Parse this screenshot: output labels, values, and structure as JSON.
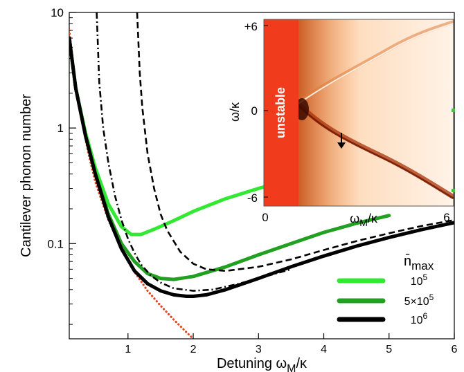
{
  "chart_data": {
    "type": "line",
    "xlabel": "Detuning ω_M/κ",
    "ylabel": "Cantilever phonon number",
    "xlim": [
      0.1,
      6
    ],
    "ylim": [
      0.015,
      10
    ],
    "yscale": "log",
    "xticks": [
      1,
      2,
      3,
      4,
      5,
      6
    ],
    "xtick_labels": [
      "1",
      "2",
      "3",
      "4",
      "5",
      "6"
    ],
    "yticks": [
      0.1,
      1,
      10
    ],
    "ytick_labels": [
      "0.1",
      "1",
      "10"
    ],
    "grid": false,
    "legend": {
      "title": "n̄_max",
      "placement": "bottom-right",
      "entries": [
        {
          "label": "10^5",
          "color": "#33e833"
        },
        {
          "label": "5×10^5",
          "color": "#22a022"
        },
        {
          "label": "10^6",
          "color": "#000000"
        }
      ]
    },
    "series": [
      {
        "name": "10^5",
        "style": "solid",
        "color": "#33e833",
        "x": [
          0.1,
          0.2,
          0.35,
          0.5,
          0.7,
          0.9,
          1.05,
          1.2,
          1.4,
          1.7,
          2.0,
          2.5,
          3.0,
          3.5,
          4.0,
          4.5
        ],
        "y": [
          6,
          2.2,
          0.9,
          0.45,
          0.22,
          0.14,
          0.12,
          0.12,
          0.133,
          0.158,
          0.19,
          0.245,
          0.3,
          0.36,
          0.42,
          0.48
        ]
      },
      {
        "name": "5×10^5",
        "style": "solid",
        "color": "#22a022",
        "x": [
          0.1,
          0.2,
          0.35,
          0.5,
          0.7,
          0.9,
          1.1,
          1.3,
          1.5,
          1.7,
          2.0,
          2.5,
          3.0,
          3.5,
          4.0,
          4.5,
          5.0
        ],
        "y": [
          6,
          2.2,
          0.85,
          0.4,
          0.18,
          0.1,
          0.07,
          0.055,
          0.05,
          0.049,
          0.052,
          0.063,
          0.08,
          0.1,
          0.125,
          0.15,
          0.175
        ]
      },
      {
        "name": "10^6",
        "style": "solid",
        "color": "#000000",
        "x": [
          0.1,
          0.2,
          0.35,
          0.5,
          0.7,
          0.9,
          1.1,
          1.3,
          1.5,
          1.7,
          1.9,
          2.0,
          2.2,
          2.5,
          3.0,
          3.5,
          4.0,
          4.5,
          5.0,
          5.5,
          6.0
        ],
        "y": [
          6,
          2.2,
          0.85,
          0.4,
          0.17,
          0.09,
          0.058,
          0.045,
          0.039,
          0.036,
          0.035,
          0.035,
          0.036,
          0.04,
          0.05,
          0.063,
          0.078,
          0.095,
          0.113,
          0.132,
          0.152
        ]
      },
      {
        "name": "",
        "style": "dashdot",
        "color": "#000000",
        "x": [
          0.52,
          0.56,
          0.62,
          0.7,
          0.8,
          0.9,
          1.0,
          1.1,
          1.2,
          1.35,
          1.5,
          1.7,
          2.0,
          2.3,
          2.7,
          3.0,
          3.5
        ],
        "y": [
          10,
          2.5,
          1.0,
          0.5,
          0.26,
          0.16,
          0.11,
          0.083,
          0.066,
          0.053,
          0.046,
          0.041,
          0.039,
          0.04,
          0.045,
          0.05,
          0.06
        ]
      },
      {
        "name": "",
        "style": "dashed",
        "color": "#000000",
        "x": [
          1.14,
          1.18,
          1.22,
          1.3,
          1.4,
          1.5,
          1.6,
          1.8,
          2.0,
          2.2,
          2.5,
          3.0,
          3.5,
          4.0,
          4.5,
          5.0,
          5.5,
          6.0
        ],
        "y": [
          10,
          3.0,
          1.5,
          0.6,
          0.3,
          0.18,
          0.13,
          0.085,
          0.067,
          0.06,
          0.058,
          0.063,
          0.073,
          0.088,
          0.105,
          0.123,
          0.142,
          0.16
        ]
      },
      {
        "name": "",
        "style": "dotted",
        "color": "#e8401c",
        "x": [
          0.1,
          0.2,
          0.3,
          0.4,
          0.5,
          0.7,
          0.9,
          1.1,
          1.3,
          1.5,
          1.7,
          1.9,
          2.0
        ],
        "y": [
          7,
          2.4,
          1.1,
          0.58,
          0.34,
          0.16,
          0.09,
          0.057,
          0.039,
          0.029,
          0.022,
          0.017,
          0.015
        ]
      }
    ],
    "inset": {
      "type": "heatmap",
      "xlabel": "ω_M/κ",
      "ylabel": "ω/κ",
      "xtick_labels": [
        "0",
        "6"
      ],
      "ytick_labels": [
        "+6",
        "0",
        "-6"
      ],
      "xlim": [
        0,
        6
      ],
      "ylim": [
        -6,
        6
      ],
      "unstable_region_xmax": 0.45,
      "annotation": "unstable",
      "arrow_at": [
        4.2,
        -1.5
      ],
      "colors": {
        "unstable": "#f03c1c",
        "low": "#fff3e8",
        "high": "#7a1a00"
      }
    }
  }
}
